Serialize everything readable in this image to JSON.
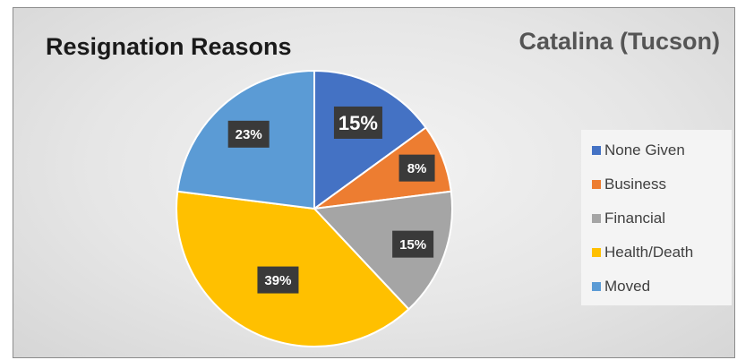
{
  "title": "Resignation Reasons",
  "subtitle": "Catalina (Tucson)",
  "colors": {
    "None Given": "#4472c4",
    "Business": "#ed7d31",
    "Financial": "#a5a5a5",
    "Health/Death": "#ffc000",
    "Moved": "#5b9bd5"
  },
  "chart_data": {
    "type": "pie",
    "title": "Resignation Reasons",
    "subtitle": "Catalina (Tucson)",
    "categories": [
      "None Given",
      "Business",
      "Financial",
      "Health/Death",
      "Moved"
    ],
    "values": [
      15,
      8,
      15,
      39,
      23
    ],
    "data_labels": [
      "15%",
      "8%",
      "15%",
      "39%",
      "23%"
    ],
    "legend": "right"
  }
}
